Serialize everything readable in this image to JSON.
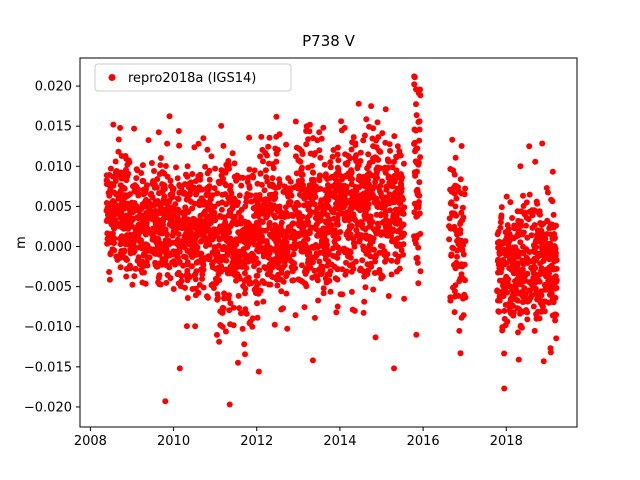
{
  "figure": {
    "title": "P738 V"
  },
  "chart_data": {
    "type": "scatter",
    "title": "P738 V",
    "xlabel": "",
    "ylabel": "m",
    "legend": {
      "label": "repro2018a (IGS14)",
      "position": "upper left"
    },
    "series_color": "#ff0000",
    "marker_radius": 3,
    "xlim": [
      2007.75,
      2019.7
    ],
    "ylim": [
      -0.0225,
      0.0235
    ],
    "xticks": [
      2008,
      2010,
      2012,
      2014,
      2016,
      2018
    ],
    "xtick_labels": [
      "2008",
      "2010",
      "2012",
      "2014",
      "2016",
      "2018"
    ],
    "yticks": [
      -0.02,
      -0.015,
      -0.01,
      -0.005,
      0.0,
      0.005,
      0.01,
      0.015,
      0.02
    ],
    "ytick_labels": [
      "−0.020",
      "−0.015",
      "−0.010",
      "−0.005",
      "0.000",
      "0.005",
      "0.010",
      "0.015",
      "0.020"
    ],
    "grid": false,
    "axes_rect": [
      80,
      58,
      497,
      369
    ],
    "seed": 738,
    "value_clamp": [
      -0.0198,
      0.0212
    ],
    "segments": [
      {
        "t0": 2008.38,
        "t1": 2009.0,
        "n": 210,
        "mean": 0.0042,
        "sd": 0.0035
      },
      {
        "t0": 2009.0,
        "t1": 2010.0,
        "n": 320,
        "mean": 0.0032,
        "sd": 0.0036
      },
      {
        "t0": 2010.0,
        "t1": 2011.0,
        "n": 320,
        "mean": 0.0022,
        "sd": 0.004
      },
      {
        "t0": 2011.0,
        "t1": 2012.0,
        "n": 320,
        "mean": 0.0002,
        "sd": 0.005
      },
      {
        "t0": 2012.0,
        "t1": 2013.0,
        "n": 320,
        "mean": 0.0022,
        "sd": 0.0046
      },
      {
        "t0": 2013.0,
        "t1": 2014.0,
        "n": 320,
        "mean": 0.003,
        "sd": 0.0046
      },
      {
        "t0": 2014.0,
        "t1": 2015.0,
        "n": 320,
        "mean": 0.0042,
        "sd": 0.0046
      },
      {
        "t0": 2015.0,
        "t1": 2015.55,
        "n": 170,
        "mean": 0.004,
        "sd": 0.0042
      },
      {
        "t0": 2015.78,
        "t1": 2015.95,
        "n": 60,
        "mean": 0.008,
        "sd": 0.006
      },
      {
        "t0": 2016.62,
        "t1": 2017.02,
        "n": 95,
        "mean": 0.0012,
        "sd": 0.005
      },
      {
        "t0": 2017.78,
        "t1": 2019.22,
        "n": 430,
        "mean": -0.002,
        "sd": 0.004
      }
    ],
    "outliers": [
      [
        2008.55,
        0.0152
      ],
      [
        2009.05,
        0.0147
      ],
      [
        2009.8,
        -0.0193
      ],
      [
        2010.15,
        -0.0152
      ],
      [
        2010.6,
        0.0128
      ],
      [
        2011.35,
        -0.0197
      ],
      [
        2011.55,
        -0.0145
      ],
      [
        2012.05,
        -0.0156
      ],
      [
        2012.55,
        0.014
      ],
      [
        2013.2,
        0.015
      ],
      [
        2013.35,
        -0.0142
      ],
      [
        2013.6,
        0.0148
      ],
      [
        2014.45,
        0.0178
      ],
      [
        2014.75,
        0.0175
      ],
      [
        2015.1,
        0.0171
      ],
      [
        2015.3,
        -0.0152
      ],
      [
        2015.8,
        0.0211
      ],
      [
        2015.83,
        0.0196
      ],
      [
        2016.7,
        0.0133
      ],
      [
        2016.9,
        -0.0133
      ],
      [
        2017.95,
        -0.0177
      ],
      [
        2018.3,
        -0.0141
      ],
      [
        2018.55,
        0.0125
      ],
      [
        2018.9,
        -0.0143
      ]
    ]
  }
}
